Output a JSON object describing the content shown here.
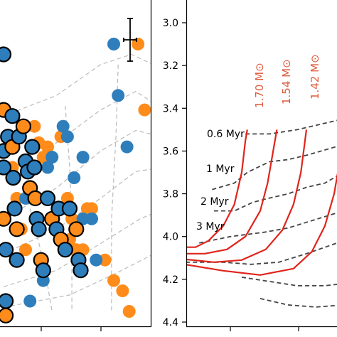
{
  "chart_data": [
    {
      "type": "scatter",
      "panel": "left",
      "xlabel": "",
      "ylabel": "",
      "colors": {
        "blue": "#2e7ebc",
        "orange": "#ff8c1a",
        "grid": "#bbbbbb",
        "axis": "#000000"
      },
      "series": [
        {
          "values": [
            [
              0.0,
              3.15
            ],
            [
              0.0,
              3.42
            ],
            [
              0.0,
              3.62
            ],
            [
              0.0,
              3.7
            ],
            [
              0.0,
              3.95
            ],
            [
              0.05,
              4.1
            ],
            [
              0.05,
              4.35
            ],
            [
              0.05,
              4.42
            ],
            [
              0.1,
              3.55
            ],
            [
              0.2,
              3.45
            ],
            [
              0.2,
              3.6
            ],
            [
              0.22,
              3.75
            ],
            [
              0.25,
              3.9
            ],
            [
              0.3,
              4.0
            ],
            [
              0.3,
              4.15
            ],
            [
              0.35,
              3.55
            ],
            [
              0.45,
              3.5
            ],
            [
              0.5,
              3.67
            ],
            [
              0.55,
              3.72
            ],
            [
              0.6,
              3.8
            ],
            [
              0.65,
              3.6
            ],
            [
              0.7,
              3.7
            ],
            [
              0.72,
              3.85
            ],
            [
              0.75,
              3.95
            ],
            [
              0.8,
              4.0
            ],
            [
              0.85,
              4.15
            ],
            [
              0.9,
              4.2
            ],
            [
              1.0,
              3.85
            ],
            [
              1.1,
              3.95
            ],
            [
              1.2,
              4.0
            ],
            [
              1.25,
              3.9
            ],
            [
              1.3,
              4.05
            ],
            [
              1.4,
              4.1
            ],
            [
              1.5,
              3.9
            ],
            [
              1.65,
              4.0
            ],
            [
              1.7,
              4.15
            ],
            [
              1.75,
              4.2
            ]
          ]
        },
        {
          "values": [
            [
              0.5,
              3.85
            ],
            [
              0.6,
              4.35
            ],
            [
              0.9,
              4.25
            ],
            [
              1.0,
              3.7
            ],
            [
              1.1,
              3.65
            ],
            [
              1.3,
              3.9
            ],
            [
              1.35,
              3.5
            ],
            [
              1.45,
              3.55
            ],
            [
              1.6,
              3.75
            ],
            [
              1.8,
              3.65
            ],
            [
              1.8,
              3.95
            ],
            [
              2.0,
              3.95
            ],
            [
              2.1,
              4.15
            ],
            [
              2.5,
              3.1
            ],
            [
              2.6,
              3.35
            ],
            [
              2.8,
              3.6
            ]
          ]
        },
        {
          "values": [
            [
              0.2,
              3.7
            ],
            [
              0.3,
              3.85
            ],
            [
              0.4,
              4.0
            ],
            [
              0.5,
              4.1
            ],
            [
              0.7,
              3.5
            ],
            [
              0.8,
              3.58
            ],
            [
              0.9,
              3.65
            ],
            [
              1.0,
              3.6
            ],
            [
              1.3,
              3.55
            ],
            [
              1.45,
              3.85
            ],
            [
              1.5,
              4.05
            ],
            [
              1.55,
              3.95
            ],
            [
              1.65,
              4.1
            ],
            [
              1.8,
              4.1
            ],
            [
              1.9,
              3.9
            ],
            [
              2.0,
              3.9
            ],
            [
              2.3,
              4.15
            ],
            [
              2.5,
              4.25
            ],
            [
              2.7,
              4.3
            ],
            [
              2.85,
              4.4
            ],
            [
              3.05,
              3.1
            ],
            [
              3.2,
              3.42
            ]
          ]
        }
      ],
      "error_bar": {
        "x": 3.55,
        "y": 3.1
      }
    },
    {
      "type": "line",
      "panel": "right",
      "xlabel": "",
      "ylabel": "",
      "ylim": [
        4.45,
        2.93
      ],
      "yticks": [
        "3.0",
        "3.2",
        "3.4",
        "3.6",
        "3.8",
        "4.0",
        "4.2",
        "4.4"
      ],
      "colors": {
        "tracks": "#e0241b",
        "isochrones": "#444444",
        "mass_labels": "#e05a3c"
      },
      "tracks_label": [
        "1.70 M⊙",
        "1.54 M⊙",
        "1.42 M⊙"
      ],
      "tracks": [
        {
          "values": [
            [
              -0.8,
              4.05
            ],
            [
              0.5,
              4.05
            ],
            [
              1.2,
              4.02
            ],
            [
              2.0,
              3.95
            ],
            [
              2.6,
              3.85
            ],
            [
              3.0,
              3.7
            ],
            [
              3.2,
              3.55
            ],
            [
              3.3,
              3.5
            ]
          ]
        },
        {
          "values": [
            [
              -0.8,
              4.08
            ],
            [
              1.0,
              4.08
            ],
            [
              2.2,
              4.06
            ],
            [
              3.2,
              4.0
            ],
            [
              4.0,
              3.88
            ],
            [
              4.4,
              3.75
            ],
            [
              4.7,
              3.6
            ],
            [
              4.9,
              3.5
            ]
          ]
        },
        {
          "values": [
            [
              -0.8,
              4.1
            ],
            [
              1.5,
              4.12
            ],
            [
              3.0,
              4.11
            ],
            [
              4.3,
              4.06
            ],
            [
              5.2,
              3.97
            ],
            [
              5.8,
              3.85
            ],
            [
              6.2,
              3.7
            ],
            [
              6.5,
              3.5
            ]
          ]
        },
        {
          "values": [
            [
              -0.8,
              4.12
            ],
            [
              2.0,
              4.16
            ],
            [
              4.0,
              4.18
            ],
            [
              5.8,
              4.15
            ],
            [
              6.8,
              4.07
            ],
            [
              7.5,
              3.95
            ],
            [
              8.0,
              3.8
            ],
            [
              8.2,
              3.7
            ]
          ]
        }
      ],
      "isochrones_label": [
        "0.6 Myr",
        "1 Myr",
        "2 Myr",
        "3 Myr"
      ],
      "isochrones": [
        {
          "values": [
            [
              3.2,
              3.52
            ],
            [
              4.5,
              3.52
            ],
            [
              6.0,
              3.5
            ],
            [
              7.5,
              3.47
            ],
            [
              8.5,
              3.45
            ]
          ]
        },
        {
          "values": [
            [
              1.4,
              3.78
            ],
            [
              2.6,
              3.75
            ],
            [
              3.3,
              3.7
            ],
            [
              4.5,
              3.65
            ],
            [
              5.5,
              3.64
            ],
            [
              6.5,
              3.62
            ],
            [
              8.5,
              3.57
            ]
          ]
        },
        {
          "values": [
            [
              1.5,
              3.88
            ],
            [
              2.6,
              3.88
            ],
            [
              3.6,
              3.84
            ],
            [
              4.5,
              3.82
            ],
            [
              5.5,
              3.8
            ],
            [
              6.5,
              3.77
            ],
            [
              7.5,
              3.75
            ],
            [
              8.5,
              3.7
            ]
          ]
        },
        {
          "values": [
            [
              0.7,
              4.03
            ],
            [
              2.4,
              4.0
            ],
            [
              4.2,
              3.98
            ],
            [
              5.5,
              3.96
            ],
            [
              7.0,
              3.92
            ],
            [
              8.5,
              3.88
            ]
          ]
        },
        {
          "values": [
            [
              -0.8,
              4.12
            ],
            [
              0.2,
              4.12
            ],
            [
              2.0,
              4.12
            ],
            [
              3.5,
              4.13
            ],
            [
              5.0,
              4.12
            ],
            [
              6.5,
              4.08
            ],
            [
              8.5,
              4.02
            ]
          ]
        },
        {
          "values": [
            [
              3.0,
              4.19
            ],
            [
              4.5,
              4.21
            ],
            [
              6.0,
              4.23
            ],
            [
              7.5,
              4.23
            ],
            [
              8.5,
              4.22
            ]
          ]
        },
        {
          "values": [
            [
              4.0,
              4.29
            ],
            [
              5.5,
              4.32
            ],
            [
              7.0,
              4.33
            ],
            [
              8.5,
              4.32
            ]
          ]
        }
      ]
    }
  ]
}
